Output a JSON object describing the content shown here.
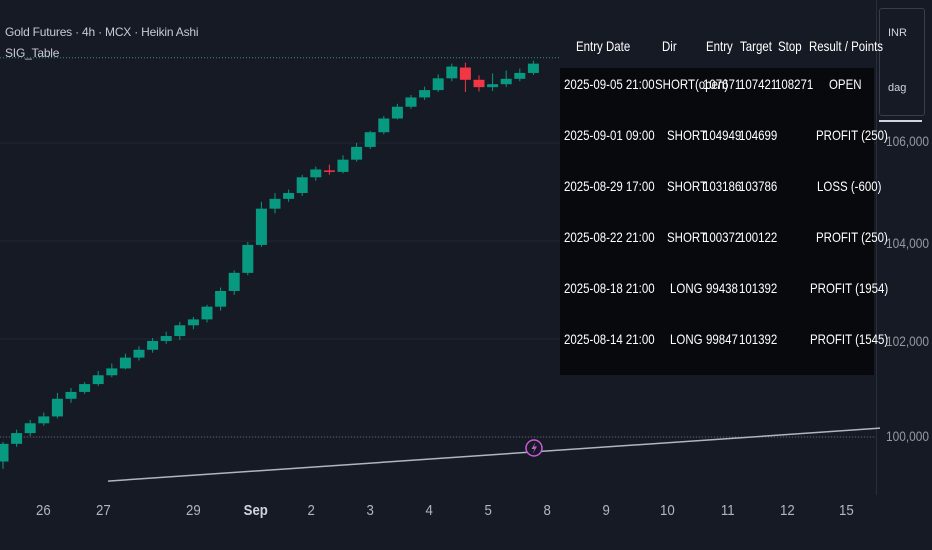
{
  "header": {
    "title": "Gold Futures · 4h · MCX · Heikin Ashi",
    "indicator": "SIG_Table"
  },
  "price_scale": {
    "currency": "INR",
    "unit": "dag",
    "ticks": [
      "106,000",
      "104,000",
      "102,000",
      "100,000"
    ]
  },
  "time_scale": {
    "labels": [
      "26",
      "27",
      "29",
      "Sep",
      "2",
      "3",
      "4",
      "5",
      "8",
      "9",
      "10",
      "11",
      "12",
      "15"
    ]
  },
  "table": {
    "headers": [
      "Entry Date",
      "Dir",
      "Entry",
      "Target",
      "Stop",
      "Result / Points"
    ],
    "rows": [
      [
        "2025-09-05 21:00",
        "SHORT(open)",
        "107671",
        "107421",
        "108271",
        "OPEN"
      ],
      [
        "2025-09-01 09:00",
        "SHORT",
        "104949",
        "104699",
        "",
        "PROFIT (250)"
      ],
      [
        "2025-08-29 17:00",
        "SHORT",
        "103186",
        "103786",
        "",
        "LOSS (-600)"
      ],
      [
        "2025-08-22 21:00",
        "SHORT",
        "100372",
        "100122",
        "",
        "PROFIT (250)"
      ],
      [
        "2025-08-18 21:00",
        "LONG",
        "99438",
        "101392",
        "",
        "PROFIT (1954)"
      ],
      [
        "2025-08-14 21:00",
        "LONG",
        "99847",
        "101392",
        "",
        "PROFIT (1545)"
      ]
    ]
  },
  "colors": {
    "background": "#161a25",
    "up": "#089981",
    "down": "#f23645",
    "grid": "#232734",
    "table_bg": "#08090c",
    "event_marker": "#c85bd6"
  },
  "chart_data": {
    "type": "candlestick",
    "style": "Heikin Ashi",
    "interval": "4h",
    "ylim": [
      99400,
      107800
    ],
    "yticks": [
      100000,
      102000,
      104000,
      106000
    ],
    "candles": [
      {
        "o": 99500,
        "h": 99900,
        "l": 99350,
        "c": 99860
      },
      {
        "o": 99860,
        "h": 100150,
        "l": 99800,
        "c": 100080
      },
      {
        "o": 100080,
        "h": 100350,
        "l": 100020,
        "c": 100280
      },
      {
        "o": 100280,
        "h": 100500,
        "l": 100230,
        "c": 100420
      },
      {
        "o": 100420,
        "h": 100900,
        "l": 100380,
        "c": 100780
      },
      {
        "o": 100780,
        "h": 101000,
        "l": 100700,
        "c": 100920
      },
      {
        "o": 100920,
        "h": 101120,
        "l": 100880,
        "c": 101080
      },
      {
        "o": 101080,
        "h": 101350,
        "l": 101040,
        "c": 101260
      },
      {
        "o": 101260,
        "h": 101500,
        "l": 101220,
        "c": 101400
      },
      {
        "o": 101400,
        "h": 101700,
        "l": 101380,
        "c": 101620
      },
      {
        "o": 101620,
        "h": 101850,
        "l": 101560,
        "c": 101780
      },
      {
        "o": 101780,
        "h": 102020,
        "l": 101720,
        "c": 101960
      },
      {
        "o": 101960,
        "h": 102150,
        "l": 101900,
        "c": 102060
      },
      {
        "o": 102060,
        "h": 102350,
        "l": 101980,
        "c": 102280
      },
      {
        "o": 102280,
        "h": 102450,
        "l": 102200,
        "c": 102400
      },
      {
        "o": 102400,
        "h": 102700,
        "l": 102340,
        "c": 102660
      },
      {
        "o": 102660,
        "h": 103050,
        "l": 102580,
        "c": 102980
      },
      {
        "o": 102980,
        "h": 103400,
        "l": 102900,
        "c": 103350
      },
      {
        "o": 103350,
        "h": 103980,
        "l": 103300,
        "c": 103920
      },
      {
        "o": 103920,
        "h": 104800,
        "l": 103880,
        "c": 104660
      },
      {
        "o": 104660,
        "h": 104980,
        "l": 104560,
        "c": 104860
      },
      {
        "o": 104860,
        "h": 105050,
        "l": 104800,
        "c": 104980
      },
      {
        "o": 104980,
        "h": 105350,
        "l": 104920,
        "c": 105300
      },
      {
        "o": 105300,
        "h": 105520,
        "l": 105230,
        "c": 105460
      },
      {
        "o": 105440,
        "h": 105560,
        "l": 105350,
        "c": 105410
      },
      {
        "o": 105410,
        "h": 105750,
        "l": 105380,
        "c": 105660
      },
      {
        "o": 105660,
        "h": 106000,
        "l": 105620,
        "c": 105920
      },
      {
        "o": 105920,
        "h": 106250,
        "l": 105880,
        "c": 106220
      },
      {
        "o": 106220,
        "h": 106550,
        "l": 106180,
        "c": 106500
      },
      {
        "o": 106500,
        "h": 106800,
        "l": 106480,
        "c": 106740
      },
      {
        "o": 106740,
        "h": 106980,
        "l": 106700,
        "c": 106930
      },
      {
        "o": 106930,
        "h": 107150,
        "l": 106880,
        "c": 107080
      },
      {
        "o": 107080,
        "h": 107400,
        "l": 107040,
        "c": 107320
      },
      {
        "o": 107320,
        "h": 107620,
        "l": 107260,
        "c": 107560
      },
      {
        "o": 107540,
        "h": 107640,
        "l": 107040,
        "c": 107290
      },
      {
        "o": 107290,
        "h": 107380,
        "l": 107050,
        "c": 107140
      },
      {
        "o": 107140,
        "h": 107420,
        "l": 107060,
        "c": 107200
      },
      {
        "o": 107200,
        "h": 107480,
        "l": 107140,
        "c": 107310
      },
      {
        "o": 107310,
        "h": 107520,
        "l": 107260,
        "c": 107430
      },
      {
        "o": 107430,
        "h": 107680,
        "l": 107390,
        "c": 107620
      }
    ],
    "trendline": {
      "from": {
        "x_label": "27",
        "y": 99100
      },
      "to": {
        "x_label": "15",
        "y": 100180
      }
    },
    "high_line": 107740
  }
}
